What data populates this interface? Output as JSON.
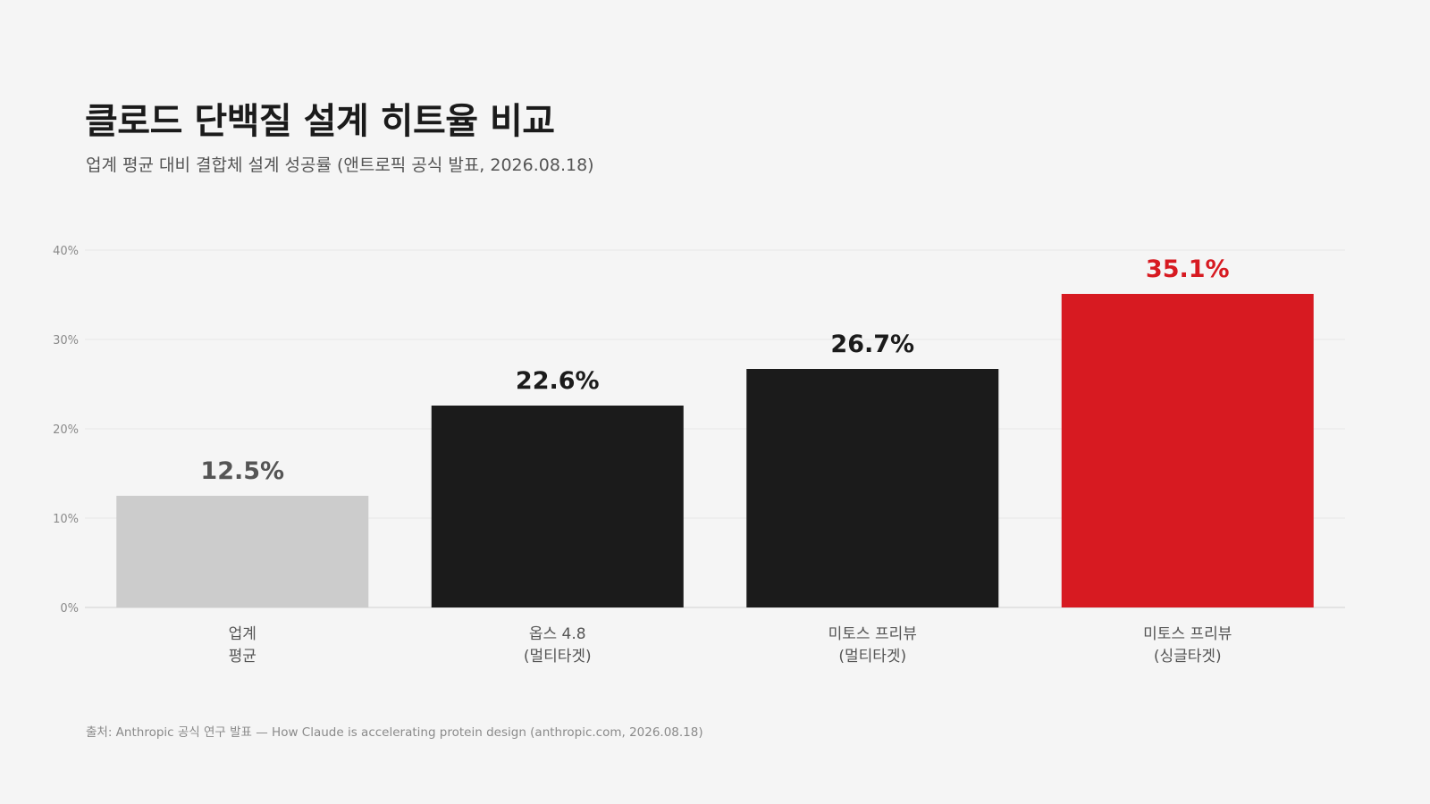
{
  "header": {
    "title": "클로드 단백질 설계 히트율 비교",
    "subtitle": "업계 평균 대비 결합체 설계 성공률 (앤트로픽 공식 발표, 2026.08.18)"
  },
  "footer": {
    "source": "출처: Anthropic 공식 연구 발표 — How Claude is accelerating protein design (anthropic.com, 2026.08.18)"
  },
  "chart_data": {
    "type": "bar",
    "title": "클로드 단백질 설계 히트율 비교",
    "subtitle": "업계 평균 대비 결합체 설계 성공률 (앤트로픽 공식 발표, 2026.08.18)",
    "xlabel": "",
    "ylabel": "",
    "ylim": [
      0,
      40
    ],
    "yticks": [
      0,
      10,
      20,
      30,
      40
    ],
    "ytick_labels": [
      "0%",
      "10%",
      "20%",
      "30%",
      "40%"
    ],
    "grid": true,
    "legend": "none",
    "categories": [
      [
        "업계",
        "평균"
      ],
      [
        "옵스 4.8",
        "(멀티타겟)"
      ],
      [
        "미토스 프리뷰",
        "(멀티타겟)"
      ],
      [
        "미토스 프리뷰",
        "(싱글타겟)"
      ]
    ],
    "values": [
      12.5,
      22.6,
      26.7,
      35.1
    ],
    "value_labels": [
      "12.5%",
      "22.6%",
      "26.7%",
      "35.1%"
    ],
    "bar_colors": [
      "#cccccc",
      "#1b1b1b",
      "#1b1b1b",
      "#d71a21"
    ],
    "value_label_colors": [
      "#555555",
      "#1b1b1b",
      "#1b1b1b",
      "#d71a21"
    ]
  }
}
